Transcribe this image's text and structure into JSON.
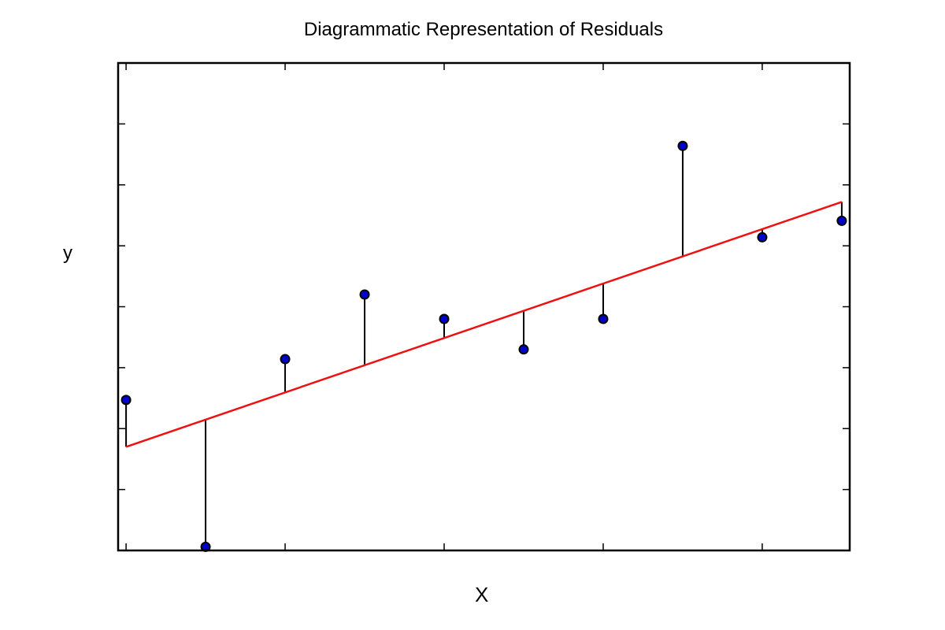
{
  "chart_data": {
    "type": "scatter",
    "title": "Diagrammatic Representation of Residuals",
    "xlabel": "X",
    "ylabel": "y",
    "xlim": [
      -0.05,
      4.55
    ],
    "ylim": [
      -4,
      4
    ],
    "x_ticks": [
      0,
      1,
      2,
      3,
      4
    ],
    "y_ticks": [
      -3,
      -2,
      -1,
      0,
      1,
      2,
      3
    ],
    "tick_labels_shown": false,
    "grid": false,
    "legend": "none",
    "points": {
      "name": "",
      "x": [
        0.0,
        0.5,
        1.0,
        1.5,
        2.0,
        2.5,
        3.0,
        3.5,
        4.0,
        4.5
      ],
      "y": [
        -1.53,
        -3.94,
        -0.86,
        0.2,
        -0.2,
        -0.7,
        -0.2,
        2.64,
        1.14,
        1.41
      ],
      "color": "#0000cc"
    },
    "fit_line": {
      "x": [
        0.0,
        4.5
      ],
      "y": [
        -2.3,
        1.72
      ],
      "color": "#ee1111"
    },
    "residual_color": "#000000"
  }
}
